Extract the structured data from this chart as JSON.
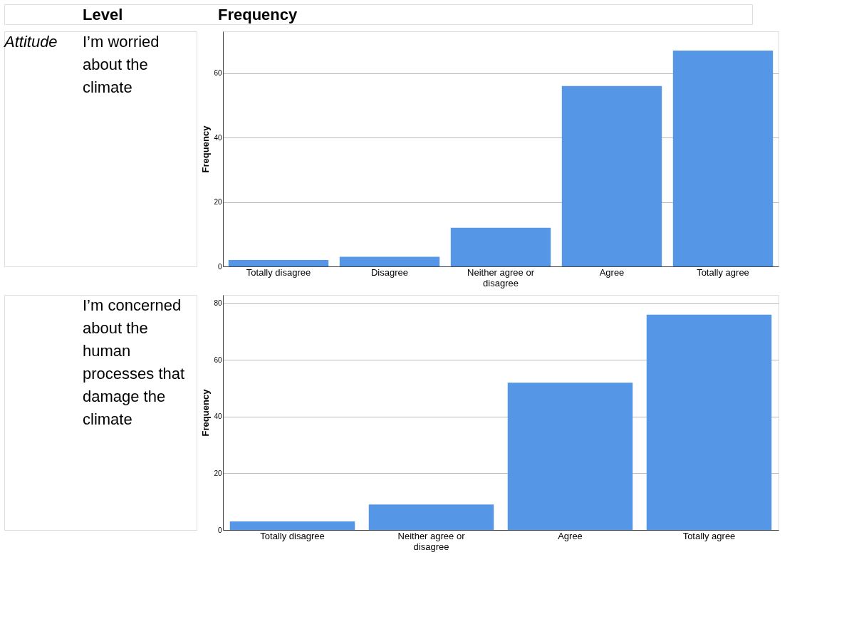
{
  "chart_data": [
    {
      "type": "bar",
      "annotations": [
        "Level",
        "Frequency",
        "Attitude"
      ],
      "title": "I’m worried about the climate",
      "ylabel": "Frequency",
      "categories": [
        "Totally disagree",
        "Disagree",
        "Neither agree or disagree",
        "Agree",
        "Totally agree"
      ],
      "values": [
        2,
        3,
        12,
        56,
        67
      ],
      "color": "#5596e6",
      "ylim": [
        0,
        73
      ],
      "yticks": [
        0,
        20,
        40,
        60
      ],
      "grid": "y",
      "legend": false
    },
    {
      "type": "bar",
      "title": "I’m concerned about the human processes that damage the climate",
      "ylabel": "Frequency",
      "categories": [
        "Totally disagree",
        "Neither agree or disagree",
        "Agree",
        "Totally agree"
      ],
      "values": [
        3,
        9,
        52,
        76
      ],
      "color": "#5596e6",
      "ylim": [
        0,
        83
      ],
      "yticks": [
        0,
        20,
        40,
        60,
        80
      ],
      "grid": "y",
      "legend": false
    }
  ]
}
